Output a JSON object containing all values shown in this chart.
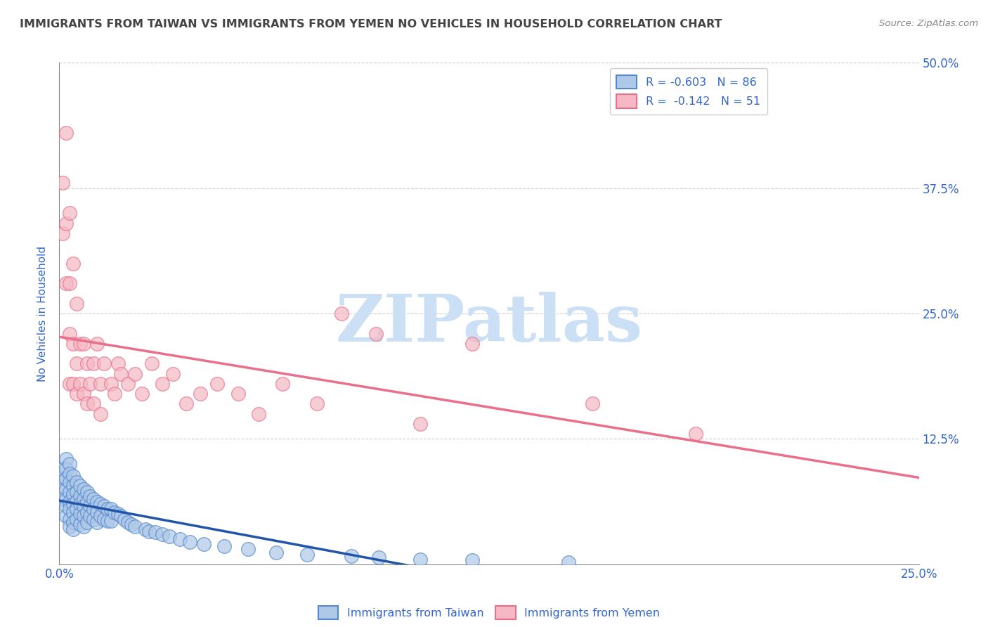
{
  "title": "IMMIGRANTS FROM TAIWAN VS IMMIGRANTS FROM YEMEN NO VEHICLES IN HOUSEHOLD CORRELATION CHART",
  "source": "Source: ZipAtlas.com",
  "ylabel": "No Vehicles in Household",
  "xlim": [
    0.0,
    0.25
  ],
  "ylim": [
    0.0,
    0.5
  ],
  "yticks": [
    0.0,
    0.125,
    0.25,
    0.375,
    0.5
  ],
  "ytick_labels_right": [
    "",
    "12.5%",
    "25.0%",
    "37.5%",
    "50.0%"
  ],
  "xtick_start_label": "0.0%",
  "xtick_end_label": "25.0%",
  "taiwan_color": "#aec8e8",
  "taiwan_edge_color": "#5588cc",
  "yemen_color": "#f5b8c4",
  "yemen_edge_color": "#e8708a",
  "taiwan_line_color": "#2255aa",
  "yemen_line_color": "#e8708a",
  "taiwan_R": -0.603,
  "taiwan_N": 86,
  "yemen_R": -0.142,
  "yemen_N": 51,
  "legend_label_taiwan": "R = -0.603   N = 86",
  "legend_label_yemen": "R =  -0.142   N = 51",
  "watermark": "ZIPatlas",
  "watermark_color": "#cce0f5",
  "bottom_legend_taiwan": "Immigrants from Taiwan",
  "bottom_legend_yemen": "Immigrants from Yemen",
  "taiwan_x": [
    0.001,
    0.001,
    0.001,
    0.001,
    0.002,
    0.002,
    0.002,
    0.002,
    0.002,
    0.002,
    0.002,
    0.003,
    0.003,
    0.003,
    0.003,
    0.003,
    0.003,
    0.003,
    0.003,
    0.004,
    0.004,
    0.004,
    0.004,
    0.004,
    0.004,
    0.004,
    0.005,
    0.005,
    0.005,
    0.005,
    0.005,
    0.006,
    0.006,
    0.006,
    0.006,
    0.006,
    0.007,
    0.007,
    0.007,
    0.007,
    0.007,
    0.008,
    0.008,
    0.008,
    0.008,
    0.009,
    0.009,
    0.009,
    0.01,
    0.01,
    0.01,
    0.011,
    0.011,
    0.011,
    0.012,
    0.012,
    0.013,
    0.013,
    0.014,
    0.014,
    0.015,
    0.015,
    0.016,
    0.017,
    0.018,
    0.019,
    0.02,
    0.021,
    0.022,
    0.025,
    0.026,
    0.028,
    0.03,
    0.032,
    0.035,
    0.038,
    0.042,
    0.048,
    0.055,
    0.063,
    0.072,
    0.085,
    0.093,
    0.105,
    0.12,
    0.148
  ],
  "taiwan_y": [
    0.085,
    0.095,
    0.075,
    0.065,
    0.105,
    0.095,
    0.085,
    0.075,
    0.065,
    0.058,
    0.048,
    0.1,
    0.09,
    0.082,
    0.072,
    0.062,
    0.055,
    0.045,
    0.038,
    0.088,
    0.078,
    0.07,
    0.06,
    0.052,
    0.042,
    0.035,
    0.082,
    0.072,
    0.063,
    0.055,
    0.045,
    0.078,
    0.068,
    0.06,
    0.05,
    0.04,
    0.075,
    0.065,
    0.058,
    0.048,
    0.038,
    0.072,
    0.062,
    0.052,
    0.042,
    0.068,
    0.058,
    0.048,
    0.065,
    0.055,
    0.045,
    0.062,
    0.052,
    0.042,
    0.06,
    0.048,
    0.058,
    0.045,
    0.055,
    0.043,
    0.055,
    0.043,
    0.052,
    0.05,
    0.048,
    0.045,
    0.042,
    0.04,
    0.038,
    0.035,
    0.033,
    0.032,
    0.03,
    0.028,
    0.025,
    0.022,
    0.02,
    0.018,
    0.015,
    0.012,
    0.01,
    0.008,
    0.007,
    0.005,
    0.004,
    0.002
  ],
  "yemen_x": [
    0.001,
    0.001,
    0.002,
    0.002,
    0.002,
    0.003,
    0.003,
    0.003,
    0.003,
    0.004,
    0.004,
    0.004,
    0.005,
    0.005,
    0.005,
    0.006,
    0.006,
    0.007,
    0.007,
    0.008,
    0.008,
    0.009,
    0.01,
    0.01,
    0.011,
    0.012,
    0.012,
    0.013,
    0.015,
    0.016,
    0.017,
    0.018,
    0.02,
    0.022,
    0.024,
    0.027,
    0.03,
    0.033,
    0.037,
    0.041,
    0.046,
    0.052,
    0.058,
    0.065,
    0.075,
    0.082,
    0.092,
    0.105,
    0.12,
    0.155,
    0.185
  ],
  "yemen_y": [
    0.38,
    0.33,
    0.34,
    0.28,
    0.43,
    0.35,
    0.28,
    0.23,
    0.18,
    0.3,
    0.22,
    0.18,
    0.26,
    0.2,
    0.17,
    0.22,
    0.18,
    0.22,
    0.17,
    0.2,
    0.16,
    0.18,
    0.2,
    0.16,
    0.22,
    0.18,
    0.15,
    0.2,
    0.18,
    0.17,
    0.2,
    0.19,
    0.18,
    0.19,
    0.17,
    0.2,
    0.18,
    0.19,
    0.16,
    0.17,
    0.18,
    0.17,
    0.15,
    0.18,
    0.16,
    0.25,
    0.23,
    0.14,
    0.22,
    0.16,
    0.13
  ],
  "background_color": "#ffffff",
  "grid_color": "#cccccc",
  "axis_color": "#3366cc",
  "title_color": "#444444"
}
